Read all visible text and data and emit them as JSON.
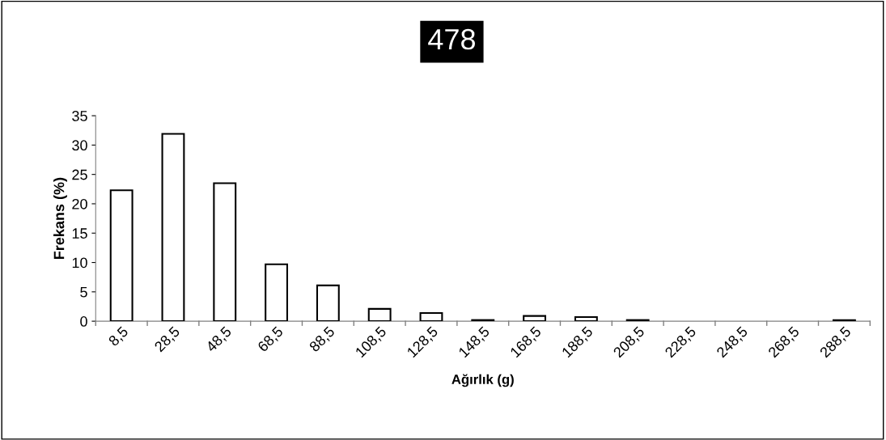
{
  "chart_data": {
    "type": "bar",
    "title": "478",
    "xlabel": "Ağırlık (g)",
    "ylabel": "Frekans (%)",
    "categories": [
      "8,5",
      "28,5",
      "48,5",
      "68,5",
      "88,5",
      "108,5",
      "128,5",
      "148,5",
      "168,5",
      "188,5",
      "208,5",
      "228,5",
      "248,5",
      "268,5",
      "288,5"
    ],
    "values": [
      22.3,
      31.9,
      23.5,
      9.7,
      6.1,
      2.1,
      1.4,
      0.2,
      0.9,
      0.7,
      0.2,
      0,
      0,
      0,
      0.2
    ],
    "color": "#ffffff",
    "ylim": [
      0,
      35
    ],
    "yticks": [
      0,
      5,
      10,
      15,
      20,
      25,
      30,
      35
    ],
    "grid": false,
    "legend": false
  }
}
